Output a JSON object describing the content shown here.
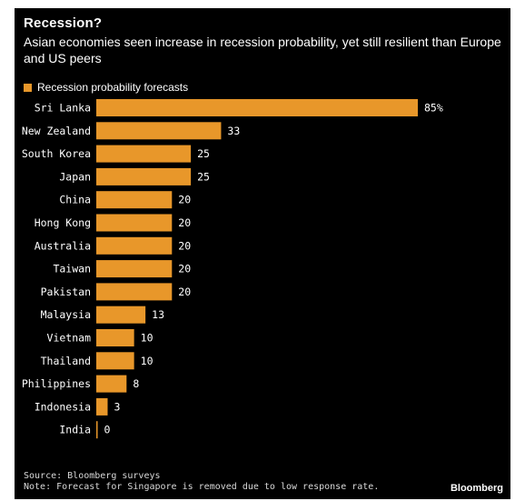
{
  "title": "Recession?",
  "subtitle": "Asian economies seen increase in recession probability, yet still resilient than Europe and US peers",
  "legend": "Recession probability forecasts",
  "colors": {
    "bar": "#E8972A",
    "background": "#000000",
    "text": "#ffffff"
  },
  "chart_data": {
    "type": "bar",
    "orientation": "horizontal",
    "categories": [
      "Sri Lanka",
      "New Zealand",
      "South Korea",
      "Japan",
      "China",
      "Hong Kong",
      "Australia",
      "Taiwan",
      "Pakistan",
      "Malaysia",
      "Vietnam",
      "Thailand",
      "Philippines",
      "Indonesia",
      "India"
    ],
    "series": [
      {
        "name": "Recession probability forecasts",
        "values": [
          85,
          33,
          25,
          25,
          20,
          20,
          20,
          20,
          20,
          13,
          10,
          10,
          8,
          3,
          0
        ]
      }
    ],
    "value_labels": [
      "85%",
      "33",
      "25",
      "25",
      "20",
      "20",
      "20",
      "20",
      "20",
      "13",
      "10",
      "10",
      "8",
      "3",
      "0"
    ],
    "xlim": [
      0,
      85
    ],
    "grid": false,
    "legend_position": "top-left"
  },
  "footer": {
    "source": "Source: Bloomberg surveys",
    "note": "Note: Forecast for Singapore is removed due to low response rate.",
    "brand": "Bloomberg"
  }
}
